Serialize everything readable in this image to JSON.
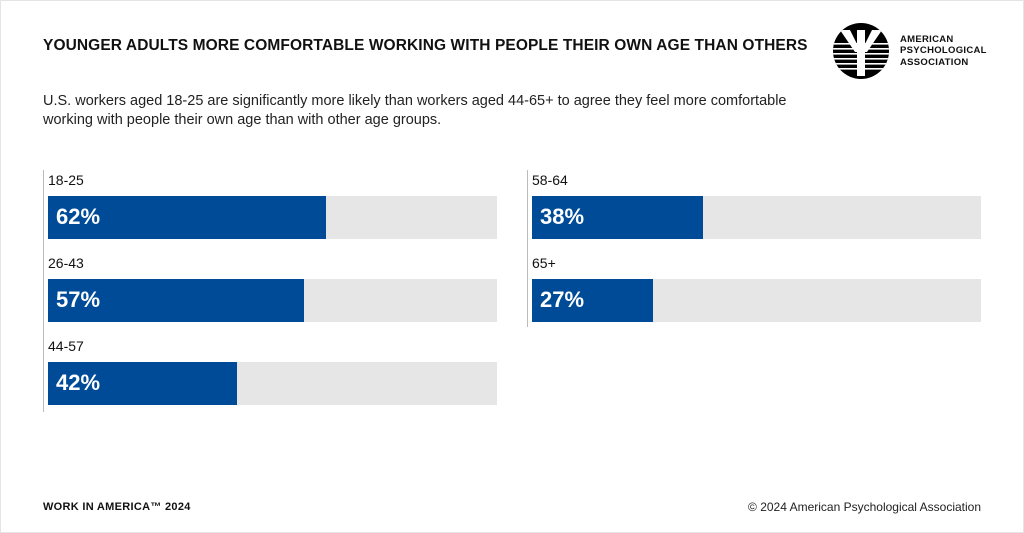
{
  "title": "YOUNGER ADULTS MORE COMFORTABLE WORKING WITH PEOPLE THEIR OWN AGE THAN OTHERS",
  "subtitle": "U.S. workers aged 18-25 are significantly more likely than workers aged 44-65+ to agree they feel more comfortable working with people their own age than with other age groups.",
  "logo": {
    "lines": [
      "AMERICAN",
      "PSYCHOLOGICAL",
      "ASSOCIATION"
    ]
  },
  "footer": {
    "left": "WORK IN AMERICA™ 2024",
    "right": "© 2024 American Psychological Association"
  },
  "colors": {
    "bar": "#004b98",
    "track": "#e6e6e6"
  },
  "chart_data": {
    "type": "bar",
    "orientation": "horizontal",
    "categories": [
      "18-25",
      "26-43",
      "44-57",
      "58-64",
      "65+"
    ],
    "values": [
      62,
      57,
      42,
      38,
      27
    ],
    "labels": [
      "62%",
      "57%",
      "42%",
      "38%",
      "27%"
    ],
    "xlim": [
      0,
      100
    ],
    "unit": "%"
  }
}
